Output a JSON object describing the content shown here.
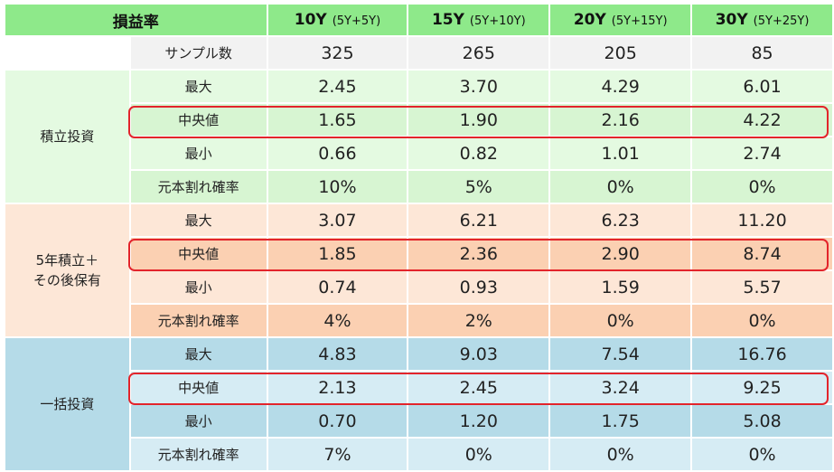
{
  "header": {
    "label": "損益率",
    "columns": [
      {
        "name": "10Y",
        "sub": "(5Y+5Y)"
      },
      {
        "name": "15Y",
        "sub": "(5Y+10Y)"
      },
      {
        "name": "20Y",
        "sub": "(5Y+15Y)"
      },
      {
        "name": "30Y",
        "sub": "(5Y+25Y)"
      }
    ]
  },
  "sample": {
    "label": "サンプル数",
    "values": [
      "325",
      "265",
      "205",
      "85"
    ]
  },
  "groups": [
    {
      "name": "積立投資",
      "rows": [
        {
          "label": "最大",
          "values": [
            "2.45",
            "3.70",
            "4.29",
            "6.01"
          ]
        },
        {
          "label": "中央値",
          "values": [
            "1.65",
            "1.90",
            "2.16",
            "4.22"
          ]
        },
        {
          "label": "最小",
          "values": [
            "0.66",
            "0.82",
            "1.01",
            "2.74"
          ]
        },
        {
          "label": "元本割れ確率",
          "values": [
            "10%",
            "5%",
            "0%",
            "0%"
          ]
        }
      ]
    },
    {
      "name": "5年積立＋その後保有",
      "name_line1": "5年積立＋",
      "name_line2": "その後保有",
      "rows": [
        {
          "label": "最大",
          "values": [
            "3.07",
            "6.21",
            "6.23",
            "11.20"
          ]
        },
        {
          "label": "中央値",
          "values": [
            "1.85",
            "2.36",
            "2.90",
            "8.74"
          ]
        },
        {
          "label": "最小",
          "values": [
            "0.74",
            "0.93",
            "1.59",
            "5.57"
          ]
        },
        {
          "label": "元本割れ確率",
          "values": [
            "4%",
            "2%",
            "0%",
            "0%"
          ]
        }
      ]
    },
    {
      "name": "一括投資",
      "rows": [
        {
          "label": "最大",
          "values": [
            "4.83",
            "9.03",
            "7.54",
            "16.76"
          ]
        },
        {
          "label": "中央値",
          "values": [
            "2.13",
            "2.45",
            "3.24",
            "9.25"
          ]
        },
        {
          "label": "最小",
          "values": [
            "0.70",
            "1.20",
            "1.75",
            "5.08"
          ]
        },
        {
          "label": "元本割れ確率",
          "values": [
            "7%",
            "0%",
            "0%",
            "0%"
          ]
        }
      ]
    }
  ],
  "colors": {
    "header_bg": "#8ee98a",
    "group1_bg": "#e4fae1",
    "group2_bg": "#fde7d7",
    "group3_bg": "#d6ecf4",
    "highlight_border": "#e3242b"
  }
}
